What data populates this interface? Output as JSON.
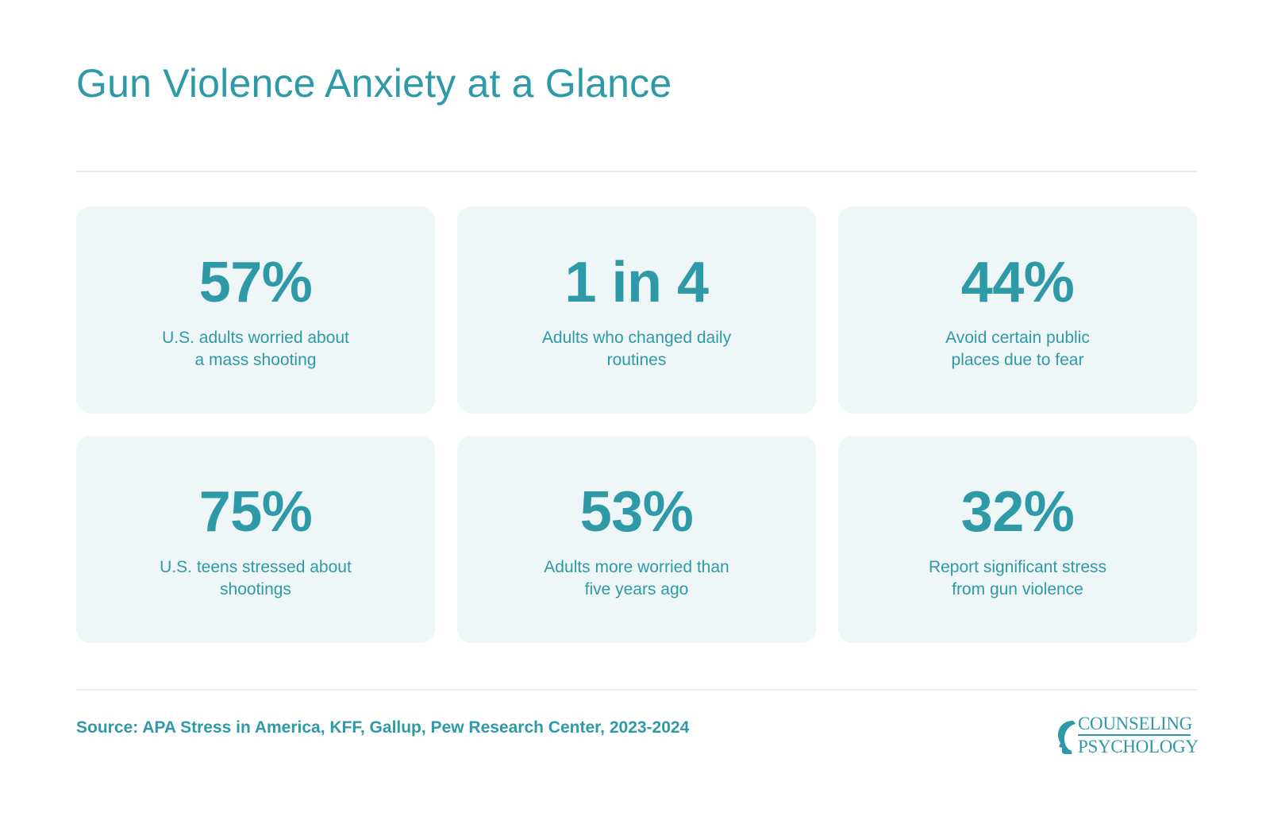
{
  "title": "Gun Violence Anxiety at a Glance",
  "stats": [
    {
      "value": "57%",
      "label_lines": [
        "U.S. adults worried about",
        "a mass shooting"
      ]
    },
    {
      "value": "1 in 4",
      "label_lines": [
        "Adults who changed daily",
        "routines"
      ]
    },
    {
      "value": "44%",
      "label_lines": [
        "Avoid certain public",
        "places due to fear"
      ]
    },
    {
      "value": "75%",
      "label_lines": [
        "U.S. teens stressed about",
        "shootings"
      ]
    },
    {
      "value": "53%",
      "label_lines": [
        "Adults more worried than",
        "five years ago"
      ]
    },
    {
      "value": "32%",
      "label_lines": [
        "Report significant stress",
        "from gun violence"
      ]
    }
  ],
  "source": "Source: APA Stress in America, KFF, Gallup, Pew Research Center, 2023-2024",
  "logo": {
    "line1": "COUNSELING",
    "line2": "PSYCHOLOGY",
    "icon": "head-profile-icon"
  },
  "colors": {
    "accent": "#2e9aa7",
    "card_background": "#eef6f8",
    "divider": "#e3eef1",
    "page_background": "#ffffff"
  }
}
